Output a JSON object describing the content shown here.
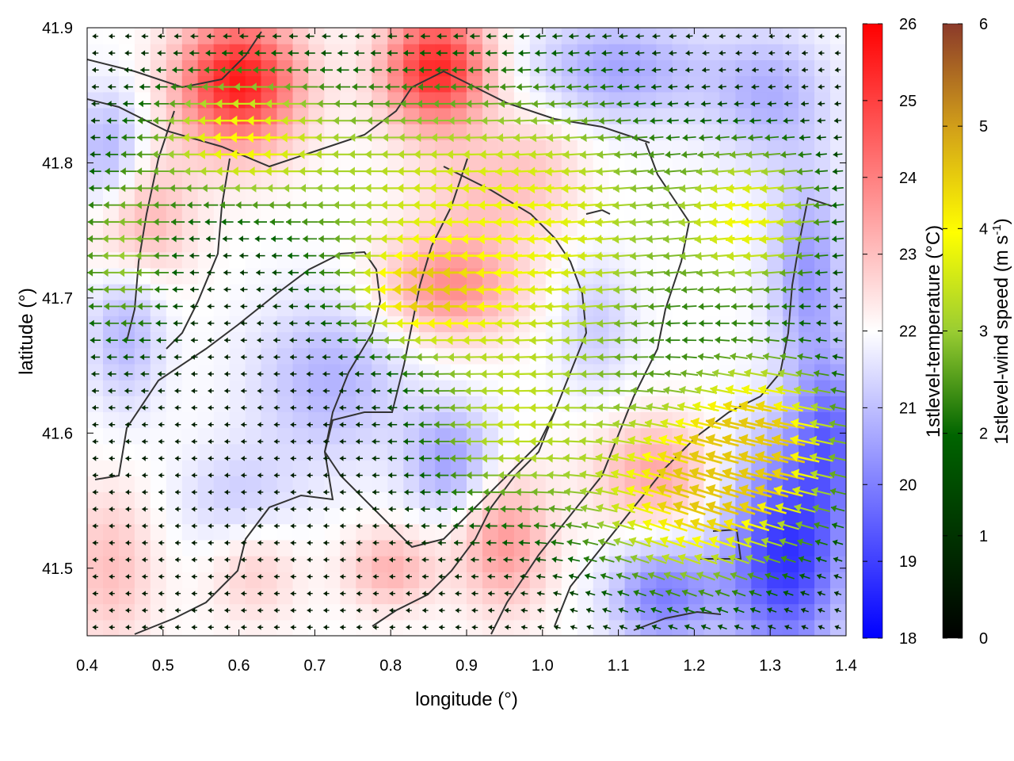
{
  "chart_data": {
    "type": "heatmap",
    "subtype": "vector-field-over-scalar-field",
    "title": "",
    "xlabel": "longitude (°)",
    "ylabel": "latitude (°)",
    "xlim": [
      0.4,
      1.4
    ],
    "ylim": [
      41.45,
      41.9
    ],
    "xticks": [
      "0.4",
      "0.5",
      "0.6",
      "0.7",
      "0.8",
      "0.9",
      "1.0",
      "1.1",
      "1.2",
      "1.3",
      "1.4"
    ],
    "yticks": [
      "41.5",
      "41.6",
      "41.7",
      "41.8",
      "41.9"
    ],
    "xtick_values": [
      0.4,
      0.5,
      0.6,
      0.7,
      0.8,
      0.9,
      1.0,
      1.1,
      1.2,
      1.3,
      1.4
    ],
    "ytick_values": [
      41.5,
      41.6,
      41.7,
      41.8,
      41.9
    ],
    "grid": false,
    "temperature_colorbar": {
      "label": "1stlevel-temperature (°C)",
      "range": [
        18,
        26
      ],
      "ticks": [
        "18",
        "19",
        "20",
        "21",
        "22",
        "23",
        "24",
        "25",
        "26"
      ],
      "colors": [
        "#0000ff",
        "#ffffff",
        "#ff0000"
      ]
    },
    "wind_colorbar": {
      "label_main": "1stlevel-wind speed (m s",
      "label_sup": "-1",
      "label_end": ")",
      "range": [
        0,
        6
      ],
      "ticks": [
        "0",
        "1",
        "2",
        "3",
        "4",
        "5",
        "6"
      ],
      "colors": [
        "#000000",
        "#006400",
        "#9acd32",
        "#ffff00",
        "#d2a019",
        "#8b3a2a"
      ]
    },
    "temperature_blobs": [
      {
        "lon": 0.6,
        "lat": 41.86,
        "dT": 3.6,
        "rlon": 0.08,
        "rlat": 0.05
      },
      {
        "lon": 0.86,
        "lat": 41.87,
        "dT": 3.4,
        "rlon": 0.07,
        "rlat": 0.045
      },
      {
        "lon": 0.46,
        "lat": 41.76,
        "dT": 1.6,
        "rlon": 0.07,
        "rlat": 0.05
      },
      {
        "lon": 0.88,
        "lat": 41.71,
        "dT": 1.8,
        "rlon": 0.09,
        "rlat": 0.04
      },
      {
        "lon": 0.92,
        "lat": 41.78,
        "dT": 0.8,
        "rlon": 0.08,
        "rlat": 0.04
      },
      {
        "lon": 1.0,
        "lat": 41.8,
        "dT": 0.6,
        "rlon": 0.06,
        "rlat": 0.05
      },
      {
        "lon": 1.15,
        "lat": 41.57,
        "dT": 1.4,
        "rlon": 0.08,
        "rlat": 0.04
      },
      {
        "lon": 0.95,
        "lat": 41.52,
        "dT": 1.6,
        "rlon": 0.06,
        "rlat": 0.05
      },
      {
        "lon": 0.8,
        "lat": 41.5,
        "dT": 1.2,
        "rlon": 0.06,
        "rlat": 0.03
      },
      {
        "lon": 0.43,
        "lat": 41.5,
        "dT": 1.0,
        "rlon": 0.06,
        "rlat": 0.06
      },
      {
        "lon": 0.62,
        "lat": 41.5,
        "dT": 0.8,
        "rlon": 0.06,
        "rlat": 0.04
      },
      {
        "lon": 1.32,
        "lat": 41.51,
        "dT": -3.2,
        "rlon": 0.08,
        "rlat": 0.08
      },
      {
        "lon": 1.38,
        "lat": 41.6,
        "dT": -2.0,
        "rlon": 0.05,
        "rlat": 0.06
      },
      {
        "lon": 1.16,
        "lat": 41.48,
        "dT": -2.0,
        "rlon": 0.07,
        "rlat": 0.04
      },
      {
        "lon": 0.43,
        "lat": 41.8,
        "dT": -1.6,
        "rlon": 0.05,
        "rlat": 0.05
      },
      {
        "lon": 0.45,
        "lat": 41.68,
        "dT": -1.2,
        "rlon": 0.05,
        "rlat": 0.06
      },
      {
        "lon": 0.72,
        "lat": 41.64,
        "dT": -1.2,
        "rlon": 0.1,
        "rlat": 0.06
      },
      {
        "lon": 0.88,
        "lat": 41.58,
        "dT": -1.5,
        "rlon": 0.06,
        "rlat": 0.04
      },
      {
        "lon": 1.35,
        "lat": 41.72,
        "dT": -1.6,
        "rlon": 0.05,
        "rlat": 0.07
      },
      {
        "lon": 1.1,
        "lat": 41.87,
        "dT": -1.4,
        "rlon": 0.12,
        "rlat": 0.04
      },
      {
        "lon": 1.3,
        "lat": 41.85,
        "dT": -1.2,
        "rlon": 0.08,
        "rlat": 0.05
      },
      {
        "lon": 1.07,
        "lat": 41.68,
        "dT": -0.8,
        "rlon": 0.05,
        "rlat": 0.05
      },
      {
        "lon": 0.6,
        "lat": 41.55,
        "dT": -0.8,
        "rlon": 0.08,
        "rlat": 0.04
      }
    ],
    "wind_regions": [
      {
        "lon": 0.85,
        "lat": 41.78,
        "speed": 2.4,
        "dir_deg": 180,
        "rlon": 0.18,
        "rlat": 0.09
      },
      {
        "lon": 1.05,
        "lat": 41.74,
        "speed": 2.2,
        "dir_deg": 185,
        "rlon": 0.14,
        "rlat": 0.12
      },
      {
        "lon": 0.6,
        "lat": 41.82,
        "speed": 3.0,
        "dir_deg": 180,
        "rlon": 0.12,
        "rlat": 0.05
      },
      {
        "lon": 0.85,
        "lat": 41.7,
        "speed": 2.6,
        "dir_deg": 180,
        "rlon": 0.1,
        "rlat": 0.04
      },
      {
        "lon": 1.28,
        "lat": 41.76,
        "speed": 3.0,
        "dir_deg": 185,
        "rlon": 0.1,
        "rlat": 0.06
      },
      {
        "lon": 1.2,
        "lat": 41.55,
        "speed": 3.6,
        "dir_deg": 160,
        "rlon": 0.14,
        "rlat": 0.07
      },
      {
        "lon": 0.95,
        "lat": 41.6,
        "speed": 2.0,
        "dir_deg": 180,
        "rlon": 0.12,
        "rlat": 0.07
      },
      {
        "lon": 0.45,
        "lat": 41.73,
        "speed": 2.0,
        "dir_deg": 180,
        "rlon": 0.07,
        "rlat": 0.07
      },
      {
        "lon": 1.3,
        "lat": 41.6,
        "speed": 3.2,
        "dir_deg": 170,
        "rlon": 0.1,
        "rlat": 0.06
      }
    ]
  }
}
